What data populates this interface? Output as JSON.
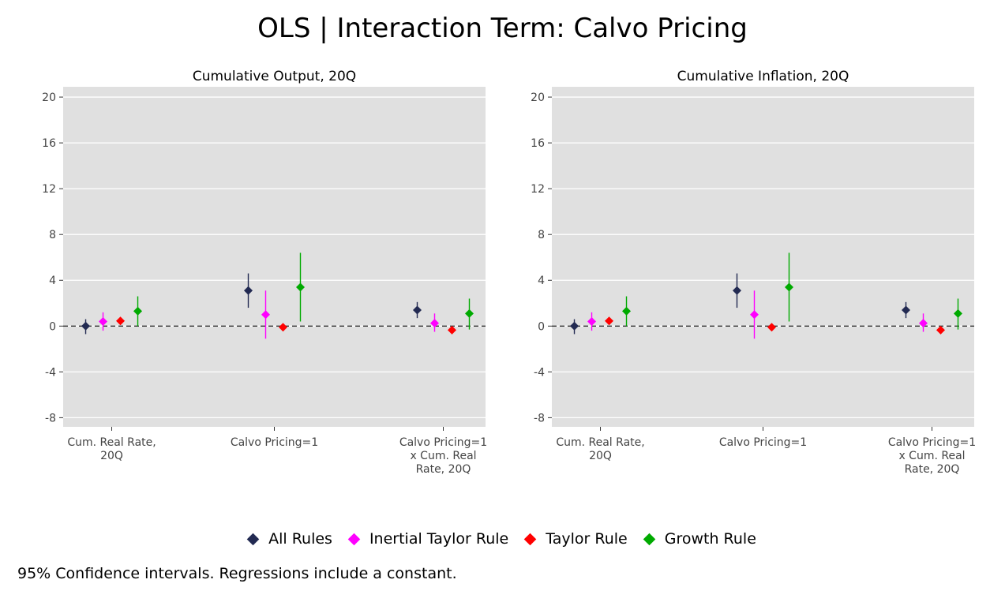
{
  "title": "OLS | Interaction Term: Calvo Pricing",
  "note": "95% Confidence intervals. Regressions include a constant.",
  "colors": {
    "panel_bg": "#e0e0e0",
    "grid": "#ffffff",
    "All Rules": "#222a52",
    "Inertial Taylor Rule": "#ff00ff",
    "Taylor Rule": "#ff0000",
    "Growth Rule": "#00aa00"
  },
  "legend": [
    "All Rules",
    "Inertial Taylor Rule",
    "Taylor Rule",
    "Growth Rule"
  ],
  "chart_data": [
    {
      "type": "scatter",
      "title": "Cumulative Output, 20Q",
      "categories": [
        [
          "Cum. Real Rate,",
          "20Q"
        ],
        [
          "Calvo Pricing=1"
        ],
        [
          "Calvo Pricing=1",
          "x Cum. Real",
          "Rate, 20Q"
        ]
      ],
      "yticks": [
        -8,
        -4,
        0,
        4,
        8,
        12,
        16,
        20
      ],
      "ylim": [
        -8.8,
        20.9
      ],
      "reference_line": 0,
      "grid": true,
      "series": [
        {
          "name": "All Rules",
          "values": [
            0.0,
            3.1,
            1.4
          ],
          "lower": [
            -0.7,
            1.6,
            0.7
          ],
          "upper": [
            0.6,
            4.6,
            2.1
          ]
        },
        {
          "name": "Inertial Taylor Rule",
          "values": [
            0.4,
            1.0,
            0.25
          ],
          "lower": [
            -0.4,
            -1.1,
            -0.5
          ],
          "upper": [
            1.2,
            3.1,
            1.1
          ]
        },
        {
          "name": "Taylor Rule",
          "values": [
            0.45,
            -0.1,
            -0.35
          ],
          "lower": [
            0.25,
            -0.4,
            -0.6
          ],
          "upper": [
            0.65,
            0.15,
            -0.1
          ]
        },
        {
          "name": "Growth Rule",
          "values": [
            1.3,
            3.4,
            1.1
          ],
          "lower": [
            0.0,
            0.4,
            -0.3
          ],
          "upper": [
            2.6,
            6.4,
            2.4
          ]
        }
      ]
    },
    {
      "type": "scatter",
      "title": "Cumulative Inflation, 20Q",
      "categories": [
        [
          "Cum. Real Rate,",
          "20Q"
        ],
        [
          "Calvo Pricing=1"
        ],
        [
          "Calvo Pricing=1",
          "x Cum. Real",
          "Rate, 20Q"
        ]
      ],
      "yticks": [
        -8,
        -4,
        0,
        4,
        8,
        12,
        16,
        20
      ],
      "ylim": [
        -8.8,
        20.9
      ],
      "reference_line": 0,
      "grid": true,
      "series": [
        {
          "name": "All Rules",
          "values": [
            0.0,
            3.1,
            1.4
          ],
          "lower": [
            -0.7,
            1.6,
            0.7
          ],
          "upper": [
            0.6,
            4.6,
            2.1
          ]
        },
        {
          "name": "Inertial Taylor Rule",
          "values": [
            0.4,
            1.0,
            0.25
          ],
          "lower": [
            -0.4,
            -1.1,
            -0.5
          ],
          "upper": [
            1.2,
            3.1,
            1.1
          ]
        },
        {
          "name": "Taylor Rule",
          "values": [
            0.45,
            -0.1,
            -0.35
          ],
          "lower": [
            0.25,
            -0.4,
            -0.6
          ],
          "upper": [
            0.65,
            0.15,
            -0.1
          ]
        },
        {
          "name": "Growth Rule",
          "values": [
            1.3,
            3.4,
            1.1
          ],
          "lower": [
            0.0,
            0.4,
            -0.3
          ],
          "upper": [
            2.6,
            6.4,
            2.4
          ]
        }
      ]
    }
  ]
}
